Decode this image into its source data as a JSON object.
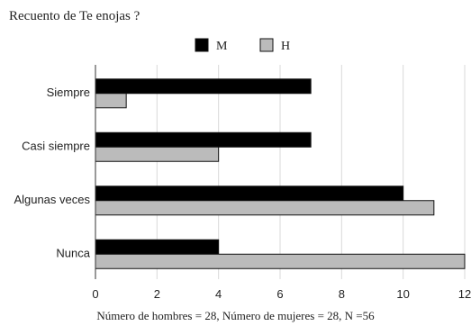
{
  "chart_data": {
    "type": "bar",
    "orientation": "horizontal",
    "title": "Recuento de Te enojas ?",
    "note": "Número de hombres = 28, Número de mujeres = 28, N =56",
    "categories": [
      "Siempre",
      "Casi siempre",
      "Algunas veces",
      "Nunca"
    ],
    "series": [
      {
        "name": "M",
        "color": "#000000",
        "values": [
          7,
          7,
          10,
          4
        ]
      },
      {
        "name": "H",
        "color": "#bbbbbb",
        "values": [
          1,
          4,
          11,
          12
        ]
      }
    ],
    "xlim": [
      0,
      12
    ],
    "xticks": [
      "0",
      "2",
      "4",
      "6",
      "8",
      "10",
      "12"
    ],
    "grid": true,
    "legend_position": "top"
  }
}
